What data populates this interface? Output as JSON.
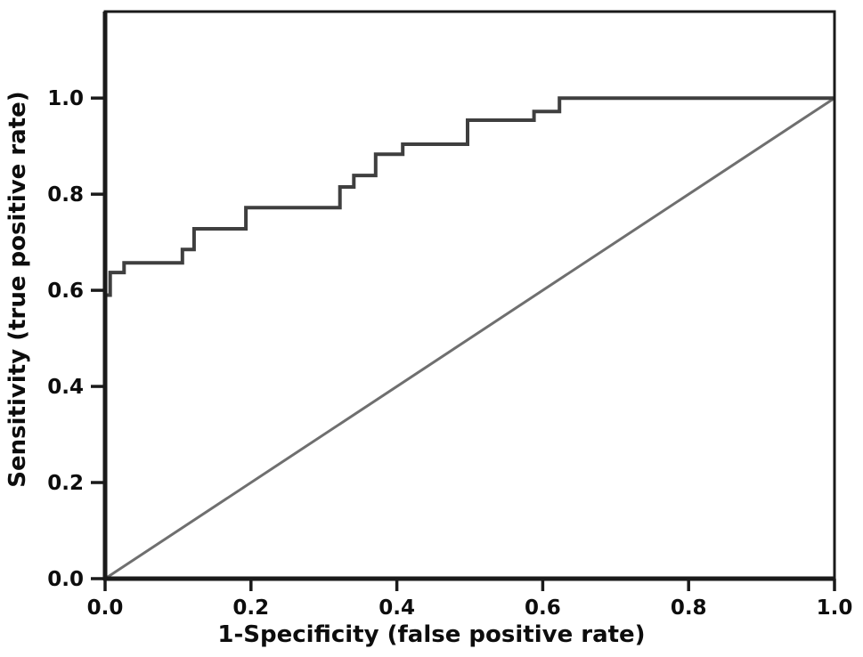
{
  "chart_data": {
    "type": "line",
    "subtype": "roc-curve",
    "title": "",
    "xlabel": "1-Specificity (false positive rate)",
    "ylabel": "Sensitivity (true positive rate)",
    "xlim": [
      0,
      1.0
    ],
    "ylim": [
      0,
      1.18
    ],
    "x_tick_labels": [
      "0.0",
      "0.2",
      "0.4",
      "0.6",
      "0.8",
      "1.0"
    ],
    "y_tick_labels": [
      "0.0",
      "0.2",
      "0.4",
      "0.6",
      "0.8",
      "1.0"
    ],
    "x_tick_values": [
      0,
      0.2,
      0.4,
      0.6,
      0.8,
      1.0
    ],
    "y_tick_values": [
      0,
      0.2,
      0.4,
      0.6,
      0.8,
      1.0
    ],
    "grid": false,
    "legend": "none",
    "background_color": "#ffffff",
    "axis_color": "#1a1a1a",
    "tick_label_color": "#0d0d0d",
    "series": [
      {
        "name": "ROC curve",
        "color": "#3f3f3f",
        "stroke_width": 4,
        "points": [
          [
            0.0,
            0.59
          ],
          [
            0.007,
            0.59
          ],
          [
            0.007,
            0.637
          ],
          [
            0.026,
            0.637
          ],
          [
            0.026,
            0.657
          ],
          [
            0.106,
            0.657
          ],
          [
            0.106,
            0.685
          ],
          [
            0.122,
            0.685
          ],
          [
            0.122,
            0.728
          ],
          [
            0.193,
            0.728
          ],
          [
            0.193,
            0.772
          ],
          [
            0.322,
            0.772
          ],
          [
            0.322,
            0.815
          ],
          [
            0.341,
            0.815
          ],
          [
            0.341,
            0.839
          ],
          [
            0.371,
            0.839
          ],
          [
            0.371,
            0.883
          ],
          [
            0.408,
            0.883
          ],
          [
            0.408,
            0.904
          ],
          [
            0.497,
            0.904
          ],
          [
            0.497,
            0.954
          ],
          [
            0.588,
            0.954
          ],
          [
            0.588,
            0.972
          ],
          [
            0.623,
            0.972
          ],
          [
            0.623,
            1.0
          ],
          [
            1.0,
            1.0
          ]
        ]
      },
      {
        "name": "Reference diagonal",
        "color": "#6f6f6f",
        "stroke_width": 3,
        "points": [
          [
            0,
            0
          ],
          [
            1,
            1
          ]
        ]
      }
    ]
  }
}
